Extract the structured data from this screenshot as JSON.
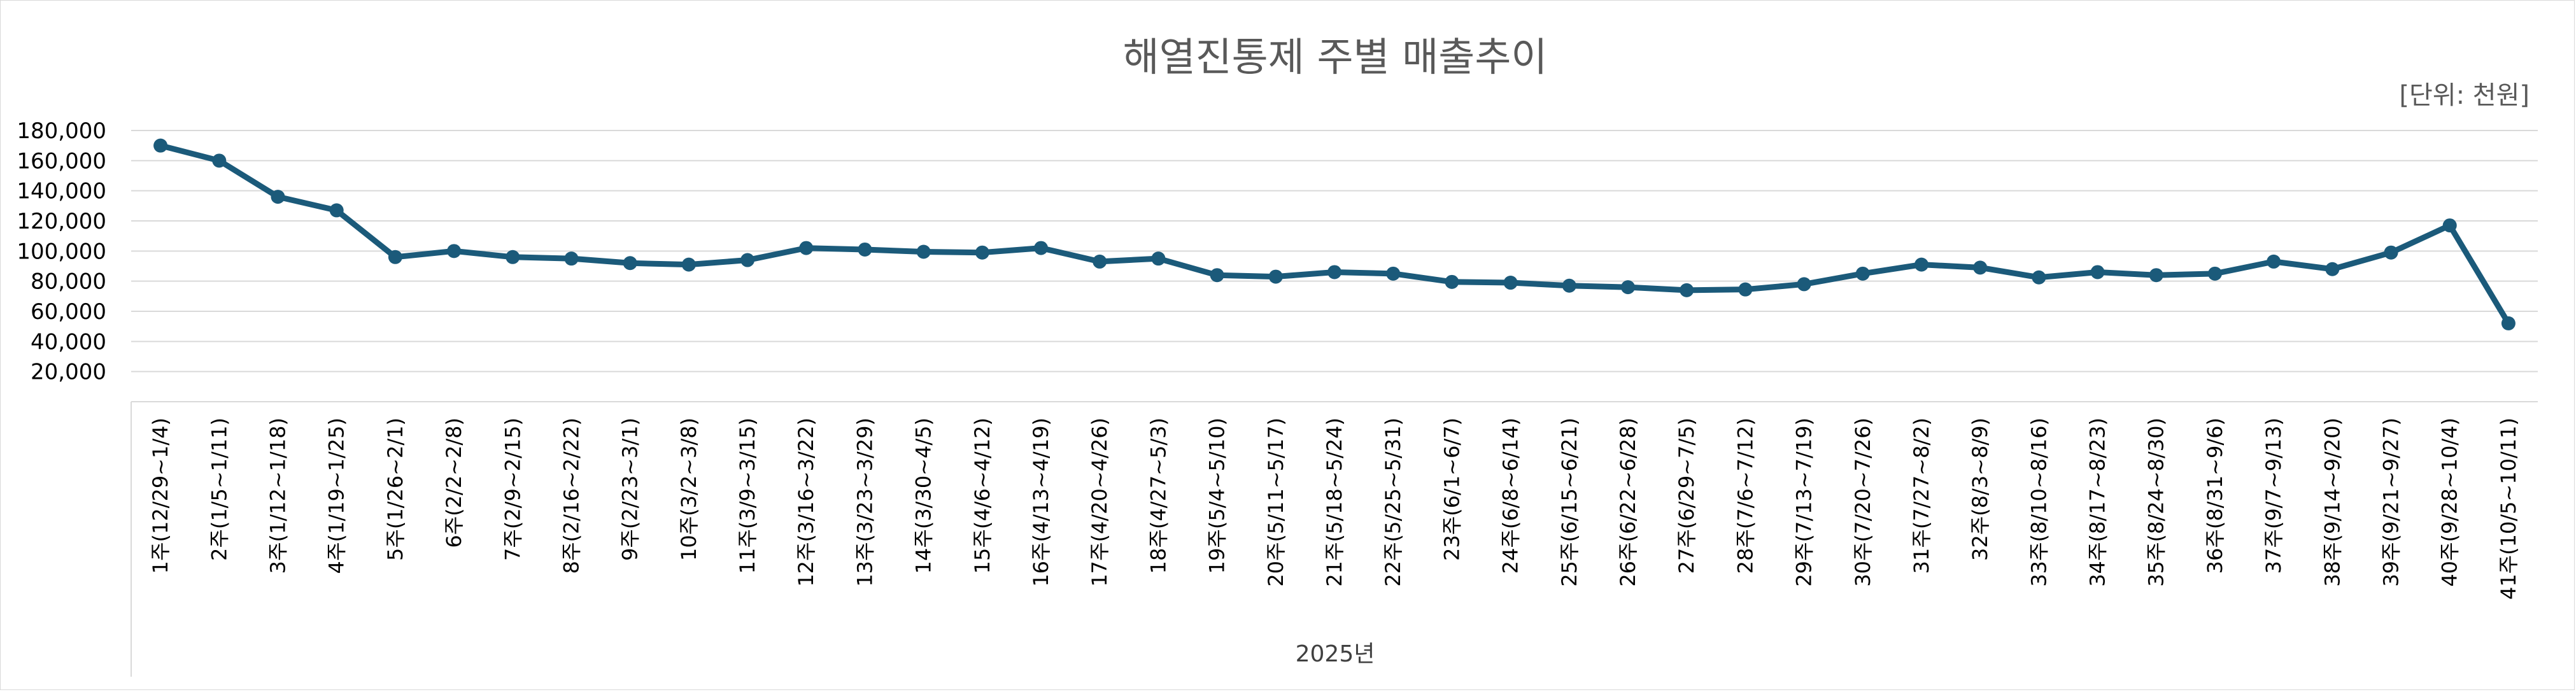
{
  "chart_data": {
    "type": "line",
    "title": "해열진통제 주별 매출추이",
    "unit_note": "[단위: 천원]",
    "xlabel": "2025년",
    "ylabel": "",
    "ylim": [
      0,
      180000
    ],
    "yticks": [
      "20,000",
      "40,000",
      "60,000",
      "80,000",
      "100,000",
      "120,000",
      "140,000",
      "160,000",
      "180,000"
    ],
    "ytick_values": [
      20000,
      40000,
      60000,
      80000,
      100000,
      120000,
      140000,
      160000,
      180000
    ],
    "grid": true,
    "legend": "none",
    "color": "#1b5a7a",
    "categories": [
      "1주(12/29~1/4)",
      "2주(1/5~1/11)",
      "3주(1/12~1/18)",
      "4주(1/19~1/25)",
      "5주(1/26~2/1)",
      "6주(2/2~2/8)",
      "7주(2/9~2/15)",
      "8주(2/16~2/22)",
      "9주(2/23~3/1)",
      "10주(3/2~3/8)",
      "11주(3/9~3/15)",
      "12주(3/16~3/22)",
      "13주(3/23~3/29)",
      "14주(3/30~4/5)",
      "15주(4/6~4/12)",
      "16주(4/13~4/19)",
      "17주(4/20~4/26)",
      "18주(4/27~5/3)",
      "19주(5/4~5/10)",
      "20주(5/11~5/17)",
      "21주(5/18~5/24)",
      "22주(5/25~5/31)",
      "23주(6/1~6/7)",
      "24주(6/8~6/14)",
      "25주(6/15~6/21)",
      "26주(6/22~6/28)",
      "27주(6/29~7/5)",
      "28주(7/6~7/12)",
      "29주(7/13~7/19)",
      "30주(7/20~7/26)",
      "31주(7/27~8/2)",
      "32주(8/3~8/9)",
      "33주(8/10~8/16)",
      "34주(8/17~8/23)",
      "35주(8/24~8/30)",
      "36주(8/31~9/6)",
      "37주(9/7~9/13)",
      "38주(9/14~9/20)",
      "39주(9/21~9/27)",
      "40주(9/28~10/4)",
      "41주(10/5~10/11)"
    ],
    "values": [
      170000,
      160000,
      136000,
      127000,
      96000,
      100000,
      96000,
      95000,
      92000,
      91000,
      94000,
      102000,
      101000,
      99500,
      99000,
      102000,
      93000,
      95000,
      84000,
      83000,
      86000,
      85000,
      79500,
      79000,
      77000,
      76000,
      74000,
      74500,
      78000,
      85000,
      91000,
      89000,
      82500,
      86000,
      84000,
      85000,
      93000,
      88000,
      99000,
      117000,
      52000
    ]
  }
}
